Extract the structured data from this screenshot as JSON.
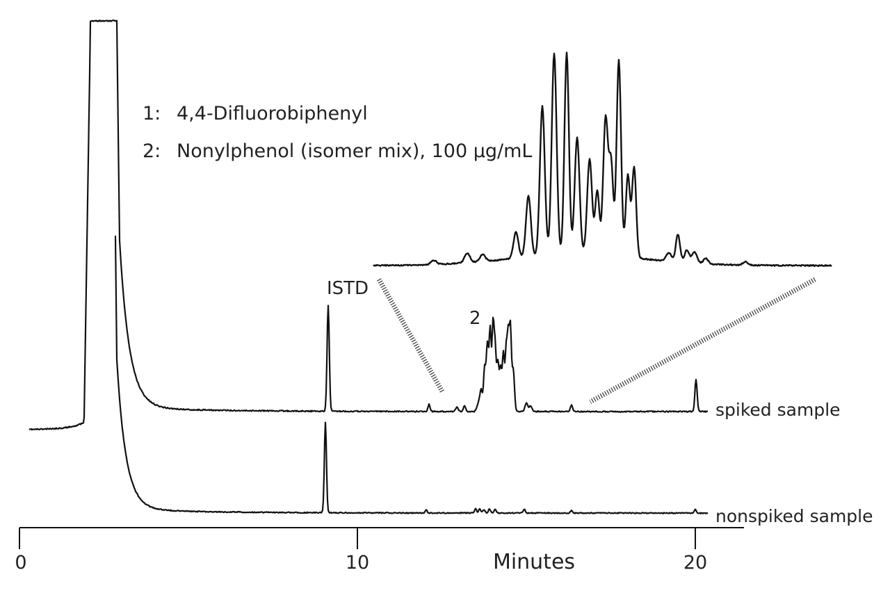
{
  "chart_data": {
    "type": "line",
    "title": "",
    "xlabel": "Minutes",
    "ylabel": "",
    "xlim": [
      0,
      21
    ],
    "grid": false,
    "legend_items": [
      {
        "label": "1:",
        "text": "4,4-Difluorobiphenyl"
      },
      {
        "label": "2:",
        "text": "Nonylphenol (isomer mix), 100 µg/mL"
      }
    ],
    "x_ticks": [
      {
        "value": 0,
        "label": "0"
      },
      {
        "value": 10,
        "label": "10"
      },
      {
        "value": 20,
        "label": "20"
      }
    ],
    "series": [
      {
        "name": "spiked sample",
        "peaks": [
          {
            "x": 2.9,
            "label": "",
            "note": "solvent peak (off scale)"
          },
          {
            "x": 9.45,
            "label": "ISTD",
            "height": 1.0
          },
          {
            "x": 13.8,
            "x_end": 15.0,
            "label": "2",
            "height": 0.9,
            "note": "nonylphenol isomer cluster"
          },
          {
            "x": 20.05,
            "label": "",
            "height": 0.3
          }
        ]
      },
      {
        "name": "nonspiked sample",
        "peaks": [
          {
            "x": 3.0,
            "label": "",
            "note": "solvent peak (off scale)"
          },
          {
            "x": 9.4,
            "label": "",
            "height": 1.0
          }
        ]
      }
    ],
    "inset": {
      "description": "enlarged view of peak group 2 (spiked sample)",
      "x_range": [
        13.0,
        17.0
      ]
    },
    "colors": {
      "trace": "#111111",
      "text": "#222222",
      "connector": "#333333"
    }
  }
}
